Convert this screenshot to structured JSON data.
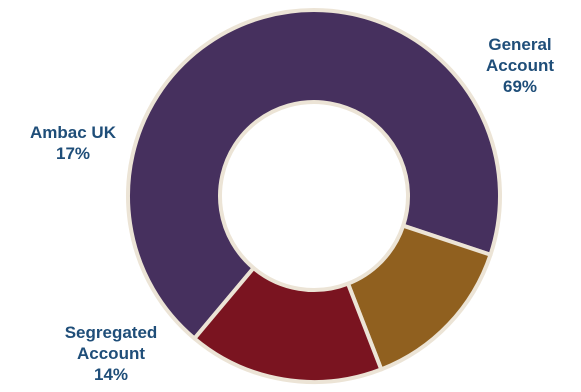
{
  "chart_data": {
    "type": "pie",
    "variant": "donut",
    "categories": [
      "General Account",
      "Segregated Account",
      "Ambac UK"
    ],
    "values": [
      69,
      14,
      17
    ],
    "unit": "%",
    "colors": [
      "#46305e",
      "#90601f",
      "#7a1420"
    ],
    "slice_border_color": "#ece4d6",
    "labels": [
      {
        "lines": [
          "General",
          "Account",
          "69%"
        ]
      },
      {
        "lines": [
          "Segregated",
          "Account",
          "14%"
        ]
      },
      {
        "lines": [
          "Ambac UK",
          "17%"
        ]
      }
    ]
  }
}
